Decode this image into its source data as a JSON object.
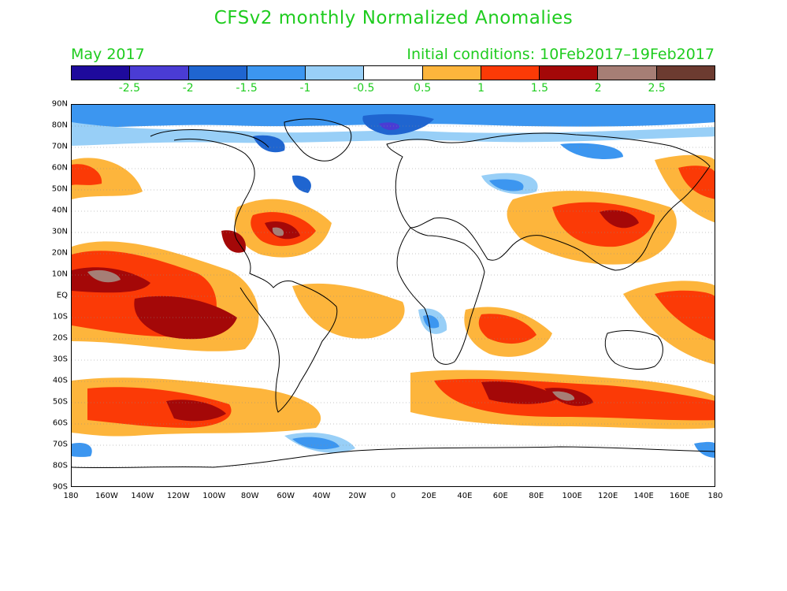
{
  "title": "CFSv2 monthly Normalized Anomalies",
  "subtitle_left": "May 2017",
  "subtitle_right": "Initial conditions: 10Feb2017–19Feb2017",
  "colorbar": {
    "colors": [
      "#1e0a9c",
      "#4a3cd4",
      "#1f65d0",
      "#3c96f0",
      "#98cff7",
      "#ffffff",
      "#fdb53c",
      "#fb3a06",
      "#a40808",
      "#a67e75",
      "#6c3b30"
    ],
    "labels": [
      "-2.5",
      "-2",
      "-1.5",
      "-1",
      "-0.5",
      "0.5",
      "1",
      "1.5",
      "2",
      "2.5"
    ]
  },
  "lat_labels": [
    "90N",
    "80N",
    "70N",
    "60N",
    "50N",
    "40N",
    "30N",
    "20N",
    "10N",
    "EQ",
    "10S",
    "20S",
    "30S",
    "40S",
    "50S",
    "60S",
    "70S",
    "80S",
    "90S"
  ],
  "lon_labels": [
    "180",
    "160W",
    "140W",
    "120W",
    "100W",
    "80W",
    "60W",
    "40W",
    "20W",
    "0",
    "20E",
    "40E",
    "60E",
    "80E",
    "100E",
    "120E",
    "140E",
    "160E",
    "180"
  ]
}
